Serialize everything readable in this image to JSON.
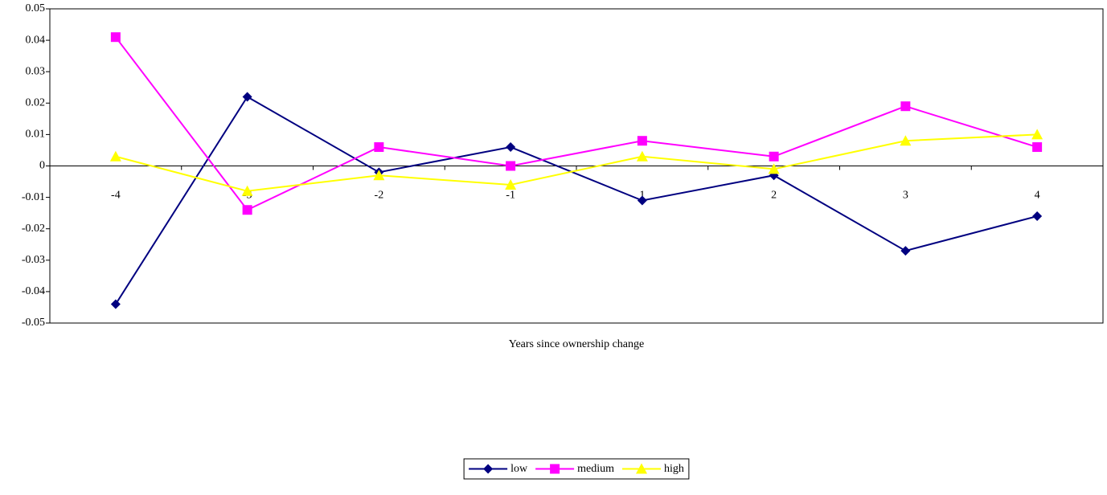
{
  "chart_data": {
    "type": "line",
    "x_label": "Years since ownership change",
    "categories": [
      "-4",
      "-3",
      "-2",
      "-1",
      "1",
      "2",
      "3",
      "4"
    ],
    "series": [
      {
        "name": "low",
        "color": "#000080",
        "marker": "diamond",
        "values": [
          -0.044,
          0.022,
          -0.002,
          0.006,
          -0.011,
          -0.003,
          -0.027,
          -0.016
        ]
      },
      {
        "name": "medium",
        "color": "#ff00ff",
        "marker": "square",
        "values": [
          0.041,
          -0.014,
          0.006,
          0.0,
          0.008,
          0.003,
          0.019,
          0.006
        ]
      },
      {
        "name": "high",
        "color": "#ffff00",
        "marker": "triangle",
        "values": [
          0.003,
          -0.008,
          -0.003,
          -0.006,
          0.003,
          -0.001,
          0.008,
          0.01
        ]
      }
    ],
    "ylim": [
      -0.05,
      0.05
    ],
    "yticks": [
      -0.05,
      -0.04,
      -0.03,
      -0.02,
      -0.01,
      0,
      0.01,
      0.02,
      0.03,
      0.04,
      0.05
    ],
    "grid": false,
    "legend": "bottom"
  }
}
